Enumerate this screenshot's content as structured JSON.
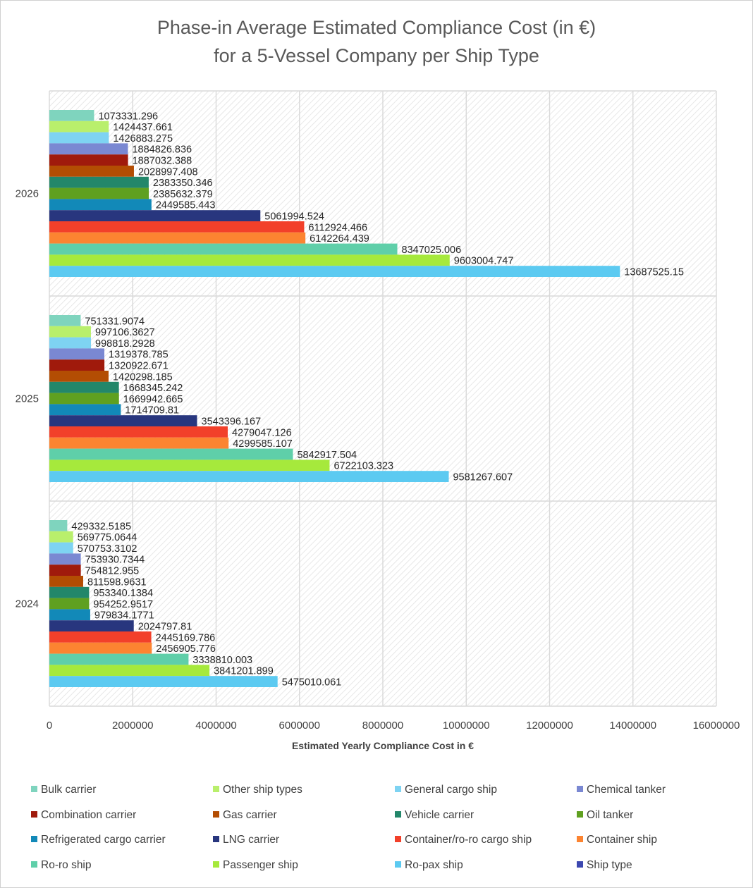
{
  "chart_data": {
    "type": "bar",
    "orientation": "horizontal",
    "title": "Phase-in Average Estimated Compliance Cost (in €)",
    "subtitle": "for a 5-Vessel Company per Ship Type",
    "xlabel": "Estimated Yearly Compliance Cost in €",
    "ylabel": "",
    "xlim": [
      0,
      16000000
    ],
    "xticks": [
      "0",
      "2000000",
      "4000000",
      "6000000",
      "8000000",
      "10000000",
      "12000000",
      "14000000",
      "16000000"
    ],
    "grid": true,
    "legend_position": "bottom",
    "categories": [
      "2026",
      "2025",
      "2024"
    ],
    "series": [
      {
        "name": "Bulk carrier",
        "color": "#7fd4be",
        "values": [
          1073331.296,
          751331.9074,
          429332.5185
        ],
        "labels": [
          "1073331.296",
          "751331.9074",
          "429332.5185"
        ]
      },
      {
        "name": "Other ship types",
        "color": "#b9ef6c",
        "values": [
          1424437.661,
          997106.3627,
          569775.0644
        ],
        "labels": [
          "1424437.661",
          "997106.3627",
          "569775.0644"
        ]
      },
      {
        "name": "General cargo ship",
        "color": "#7ed3f2",
        "values": [
          1426883.275,
          998818.2928,
          570753.3102
        ],
        "labels": [
          "1426883.275",
          "998818.2928",
          "570753.3102"
        ]
      },
      {
        "name": "Chemical tanker",
        "color": "#7a88d2",
        "values": [
          1884826.836,
          1319378.785,
          753930.7344
        ],
        "labels": [
          "1884826.836",
          "1319378.785",
          "753930.7344"
        ]
      },
      {
        "name": "Combination carrier",
        "color": "#a01a0c",
        "values": [
          1887032.388,
          1320922.671,
          754812.955
        ],
        "labels": [
          "1887032.388",
          "1320922.671",
          "754812.955"
        ]
      },
      {
        "name": "Gas carrier",
        "color": "#b34d03",
        "values": [
          2028997.408,
          1420298.185,
          811598.9631
        ],
        "labels": [
          "2028997.408",
          "1420298.185",
          "811598.9631"
        ]
      },
      {
        "name": "Vehicle carrier",
        "color": "#23876a",
        "values": [
          2383350.346,
          1668345.242,
          953340.1384
        ],
        "labels": [
          "2383350.346",
          "1668345.242",
          "953340.1384"
        ]
      },
      {
        "name": "Oil tanker",
        "color": "#5fa020",
        "values": [
          2385632.379,
          1669942.665,
          954252.9517
        ],
        "labels": [
          "2385632.379",
          "1669942.665",
          "954252.9517"
        ]
      },
      {
        "name": "Refrigerated cargo carrier",
        "color": "#1289b8",
        "values": [
          2449585.443,
          1714709.81,
          979834.1771
        ],
        "labels": [
          "2449585.443",
          "1714709.81",
          "979834.1771"
        ]
      },
      {
        "name": "LNG carrier",
        "color": "#28367e",
        "values": [
          5061994.524,
          3543396.167,
          2024797.81
        ],
        "labels": [
          "5061994.524",
          "3543396.167",
          "2024797.81"
        ]
      },
      {
        "name": "Container/ro-ro cargo ship",
        "color": "#f2402a",
        "values": [
          6112924.466,
          4279047.126,
          2445169.786
        ],
        "labels": [
          "6112924.466",
          "4279047.126",
          "2445169.786"
        ]
      },
      {
        "name": "Container ship",
        "color": "#fc8431",
        "values": [
          6142264.439,
          4299585.107,
          2456905.776
        ],
        "labels": [
          "6142264.439",
          "4299585.107",
          "2456905.776"
        ]
      },
      {
        "name": "Ro-ro ship",
        "color": "#5fcfa9",
        "values": [
          8347025.006,
          5842917.504,
          3338810.003
        ],
        "labels": [
          "8347025.006",
          "5842917.504",
          "3338810.003"
        ]
      },
      {
        "name": "Passenger ship",
        "color": "#a6e93c",
        "values": [
          9603004.747,
          6722103.323,
          3841201.899
        ],
        "labels": [
          "9603004.747",
          "6722103.323",
          "3841201.899"
        ]
      },
      {
        "name": "Ro-pax ship",
        "color": "#5ccaf1",
        "values": [
          13687525.15,
          9581267.607,
          5475010.061
        ],
        "labels": [
          "13687525.15",
          "9581267.607",
          "5475010.061"
        ]
      },
      {
        "name": "Ship type",
        "color": "#3c48b0",
        "values": [
          null,
          null,
          null
        ],
        "labels": []
      }
    ]
  }
}
